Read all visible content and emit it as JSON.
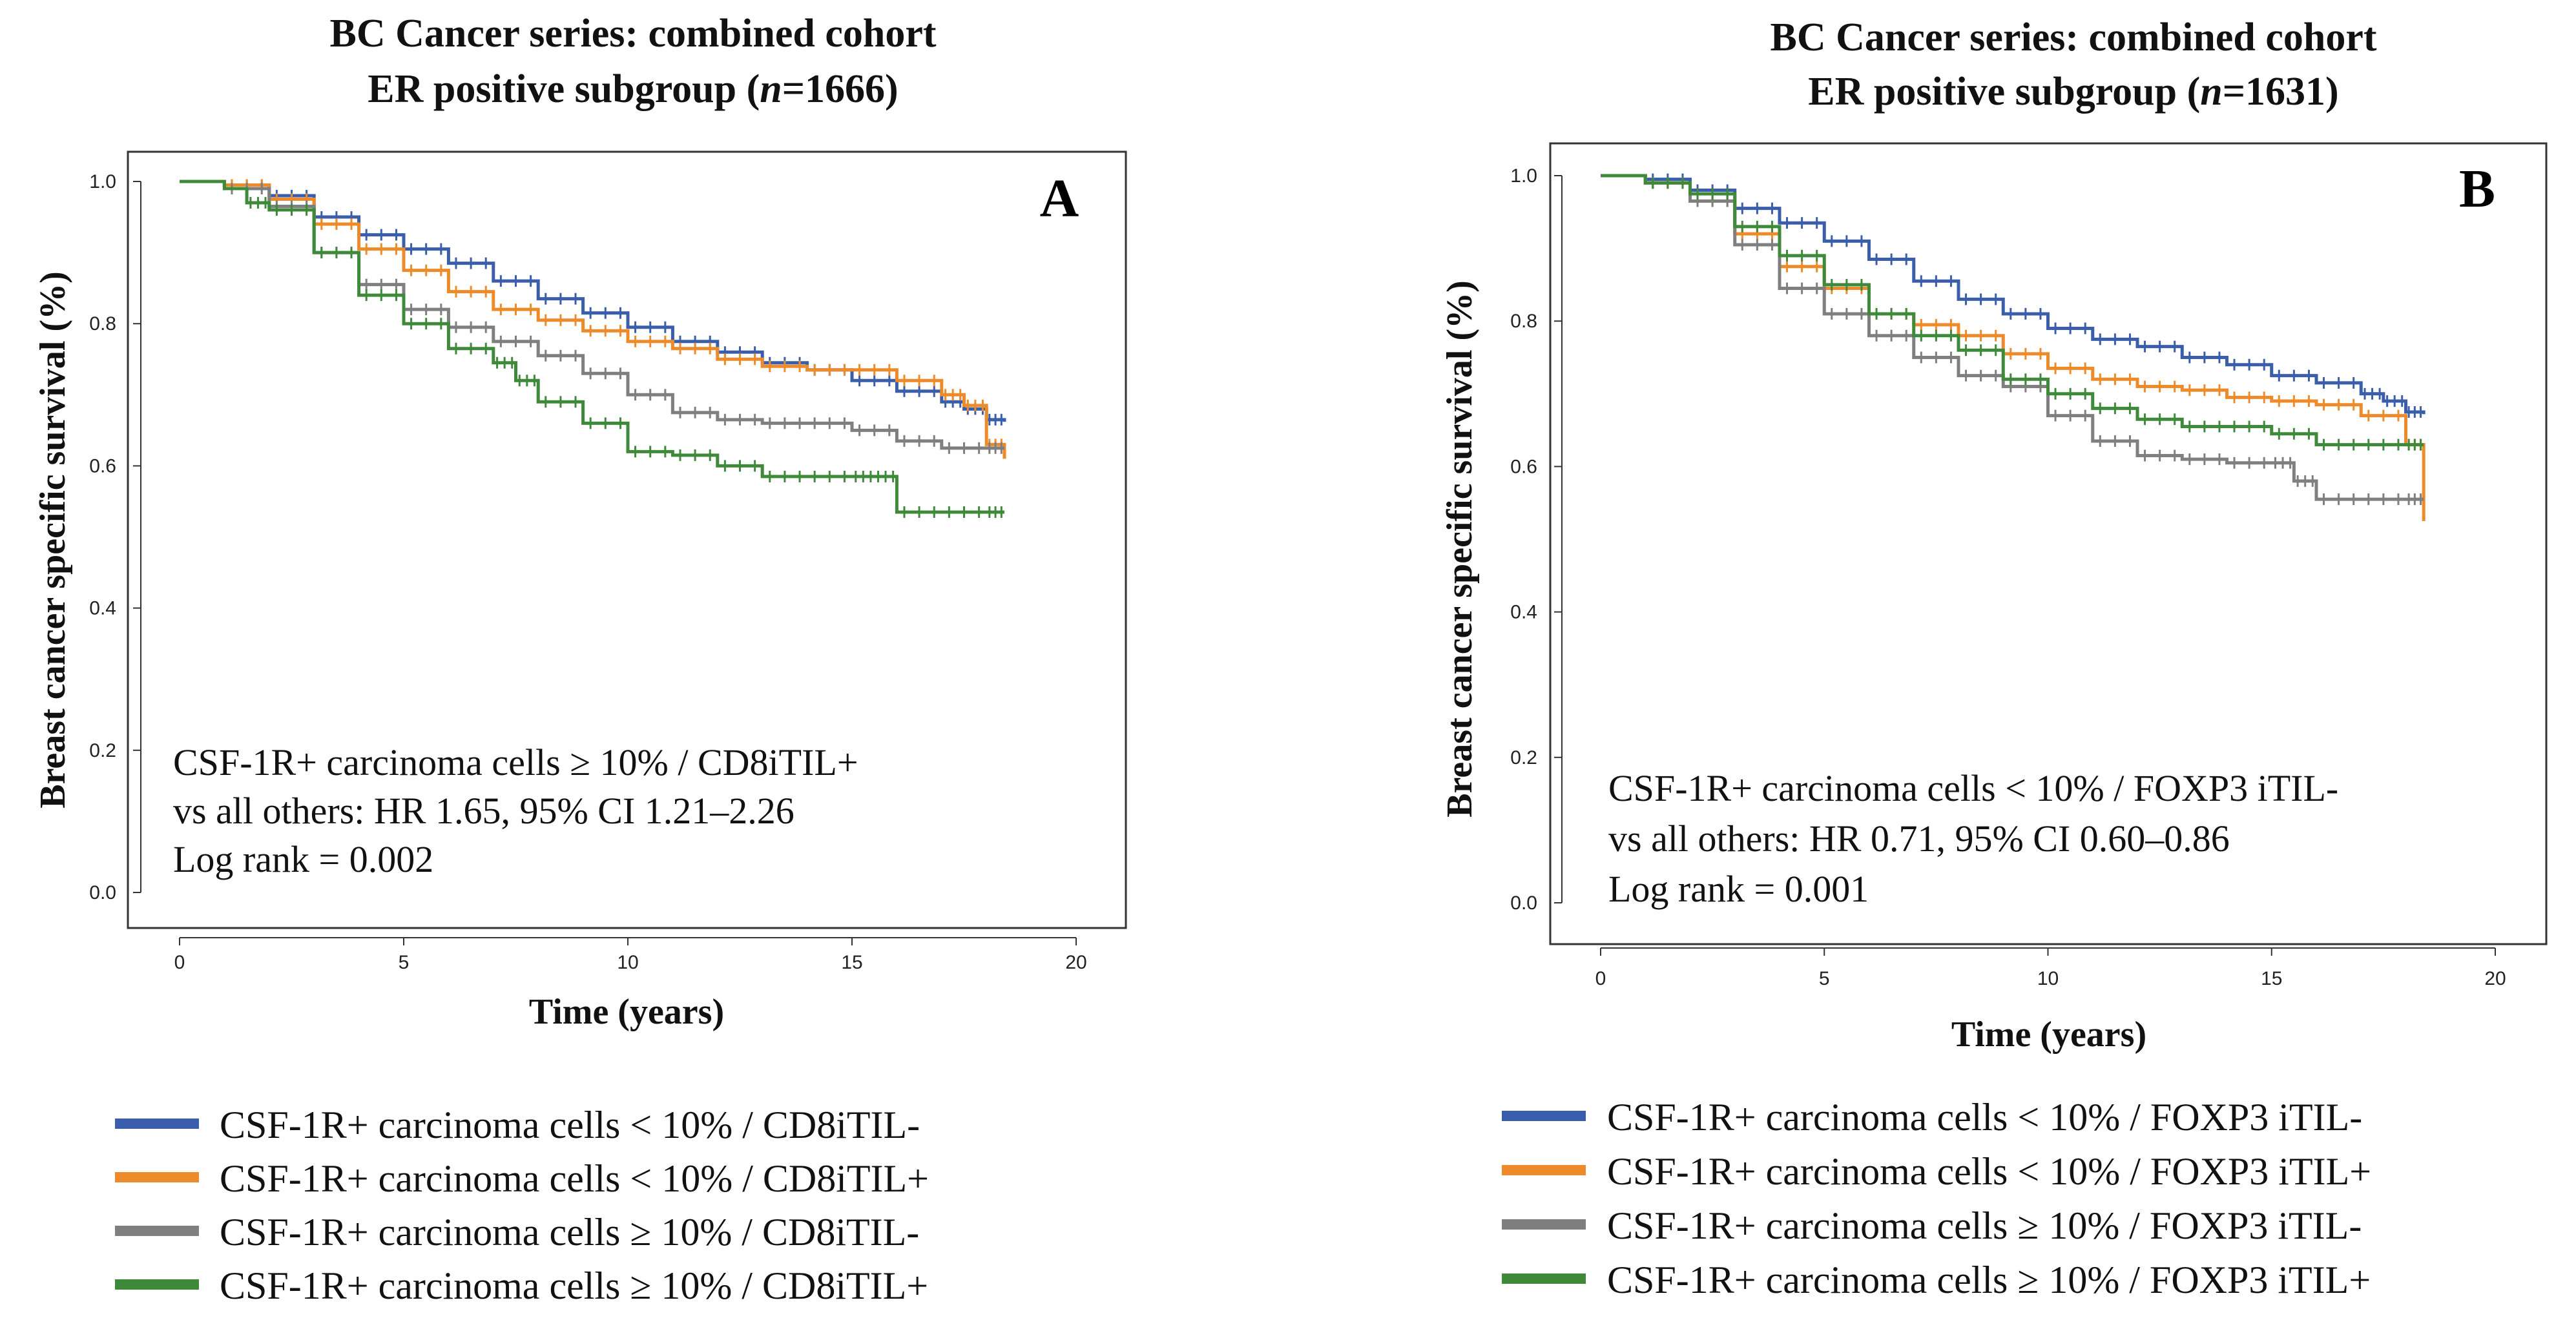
{
  "chart_data": [
    {
      "type": "line",
      "panel": "A",
      "title": [
        "BC Cancer series: combined cohort",
        "ER positive subgroup (",
        "n",
        "=1666)"
      ],
      "xlabel": "Time (years)",
      "ylabel": "Breast cancer specific survival (%)",
      "xlim": [
        0,
        20
      ],
      "ylim": [
        0,
        1
      ],
      "xticks": [
        "0",
        "5",
        "10",
        "15",
        "20"
      ],
      "yticks": [
        "0.0",
        "0.2",
        "0.4",
        "0.6",
        "0.8",
        "1.0"
      ],
      "annotation": [
        "CSF-1R+ carcinoma cells ≥ 10% / CD8iTIL+",
        "vs all others: HR 1.65, 95% CI 1.21–2.26",
        "Log rank = 0.002"
      ],
      "series": [
        {
          "name": "CSF-1R+ carcinoma cells < 10% / CD8iTIL-",
          "color": "#3b5eab",
          "x": [
            0,
            1,
            2,
            3,
            4,
            5,
            6,
            7,
            8,
            9,
            10,
            11,
            12,
            13,
            14,
            15,
            16,
            17,
            17.5,
            18,
            18.4
          ],
          "y": [
            1.0,
            0.995,
            0.98,
            0.95,
            0.925,
            0.905,
            0.885,
            0.86,
            0.835,
            0.815,
            0.795,
            0.775,
            0.76,
            0.745,
            0.735,
            0.72,
            0.705,
            0.69,
            0.68,
            0.665,
            0.662
          ]
        },
        {
          "name": "CSF-1R+ carcinoma cells < 10% / CD8iTIL+",
          "color": "#ed8b2a",
          "x": [
            0,
            1,
            2,
            3,
            4,
            5,
            6,
            7,
            8,
            9,
            10,
            11,
            12,
            13,
            14,
            15,
            16,
            17,
            17.5,
            18,
            18.4
          ],
          "y": [
            1.0,
            0.995,
            0.975,
            0.94,
            0.905,
            0.875,
            0.845,
            0.82,
            0.805,
            0.79,
            0.775,
            0.765,
            0.75,
            0.74,
            0.735,
            0.735,
            0.72,
            0.7,
            0.685,
            0.63,
            0.61
          ]
        },
        {
          "name": "CSF-1R+ carcinoma  cells ≥ 10% / CD8iTIL-",
          "color": "#7f7f7f",
          "x": [
            0,
            1,
            2,
            3,
            4,
            5,
            6,
            7,
            8,
            9,
            10,
            11,
            12,
            13,
            14,
            15,
            16,
            17,
            18,
            18.4
          ],
          "y": [
            1.0,
            0.99,
            0.965,
            0.9,
            0.855,
            0.82,
            0.795,
            0.775,
            0.755,
            0.73,
            0.7,
            0.675,
            0.665,
            0.66,
            0.66,
            0.65,
            0.635,
            0.625,
            0.625,
            0.625
          ]
        },
        {
          "name": "CSF-1R+ carcinoma cells ≥ 10% / CD8iTIL+",
          "color": "#3f8a3a",
          "x": [
            0,
            1,
            1.5,
            2,
            3,
            4,
            5,
            6,
            7,
            7.5,
            8,
            9,
            10,
            11,
            12,
            13,
            14,
            15,
            15.5,
            16,
            17,
            18,
            18.4
          ],
          "y": [
            1.0,
            0.99,
            0.97,
            0.96,
            0.9,
            0.84,
            0.8,
            0.765,
            0.745,
            0.72,
            0.69,
            0.66,
            0.62,
            0.615,
            0.6,
            0.585,
            0.585,
            0.585,
            0.585,
            0.535,
            0.535,
            0.535,
            0.535
          ]
        }
      ]
    },
    {
      "type": "line",
      "panel": "B",
      "title": [
        "BC Cancer series: combined cohort",
        "ER positive subgroup (",
        "n",
        "=1631)"
      ],
      "xlabel": "Time (years)",
      "ylabel": "Breast cancer specific survival (%)",
      "xlim": [
        0,
        20
      ],
      "ylim": [
        0,
        1
      ],
      "xticks": [
        "0",
        "5",
        "10",
        "15",
        "20"
      ],
      "yticks": [
        "0.0",
        "0.2",
        "0.4",
        "0.6",
        "0.8",
        "1.0"
      ],
      "annotation": [
        "CSF-1R+ carcinoma cells < 10% / FOXP3 iTIL-",
        "vs all others: HR 0.71, 95% CI 0.60–0.86",
        "Log rank = 0.001"
      ],
      "series": [
        {
          "name": "CSF-1R+ carcinoma cells < 10% / FOXP3 iTIL-",
          "color": "#3b5eab",
          "x": [
            0,
            1,
            2,
            3,
            4,
            5,
            6,
            7,
            8,
            9,
            10,
            11,
            12,
            13,
            14,
            15,
            16,
            17,
            17.5,
            18,
            18.4
          ],
          "y": [
            1.0,
            0.995,
            0.98,
            0.955,
            0.935,
            0.91,
            0.885,
            0.855,
            0.83,
            0.81,
            0.79,
            0.775,
            0.765,
            0.75,
            0.74,
            0.725,
            0.715,
            0.7,
            0.69,
            0.675,
            0.672
          ]
        },
        {
          "name": "CSF-1R+ carcinoma cells < 10% / FOXP3 iTIL+",
          "color": "#ed8b2a",
          "x": [
            0,
            1,
            2,
            3,
            4,
            5,
            6,
            7,
            8,
            9,
            10,
            11,
            12,
            13,
            14,
            15,
            16,
            17,
            18,
            18.4
          ],
          "y": [
            1.0,
            0.99,
            0.965,
            0.92,
            0.875,
            0.845,
            0.81,
            0.795,
            0.78,
            0.755,
            0.735,
            0.72,
            0.71,
            0.705,
            0.695,
            0.69,
            0.685,
            0.67,
            0.63,
            0.525
          ]
        },
        {
          "name": "CSF-1R+ carcinoma  cells ≥ 10% / FOXP3 iTIL-",
          "color": "#7f7f7f",
          "x": [
            0,
            1,
            2,
            3,
            4,
            5,
            6,
            7,
            8,
            9,
            10,
            11,
            12,
            13,
            14,
            15,
            15.5,
            16,
            17,
            18,
            18.4
          ],
          "y": [
            1.0,
            0.99,
            0.965,
            0.905,
            0.845,
            0.81,
            0.78,
            0.75,
            0.725,
            0.71,
            0.67,
            0.635,
            0.615,
            0.61,
            0.605,
            0.605,
            0.58,
            0.555,
            0.555,
            0.555,
            0.555
          ]
        },
        {
          "name": "CSF-1R+ carcinoma cells ≥ 10% / FOXP3 iTIL+",
          "color": "#3f8a3a",
          "x": [
            0,
            1,
            2,
            3,
            4,
            5,
            6,
            7,
            8,
            9,
            10,
            11,
            12,
            13,
            14,
            15,
            16,
            17,
            18,
            18.4
          ],
          "y": [
            1.0,
            0.99,
            0.975,
            0.93,
            0.89,
            0.85,
            0.81,
            0.78,
            0.76,
            0.72,
            0.7,
            0.68,
            0.665,
            0.655,
            0.655,
            0.645,
            0.63,
            0.63,
            0.63,
            0.63
          ]
        }
      ]
    }
  ]
}
